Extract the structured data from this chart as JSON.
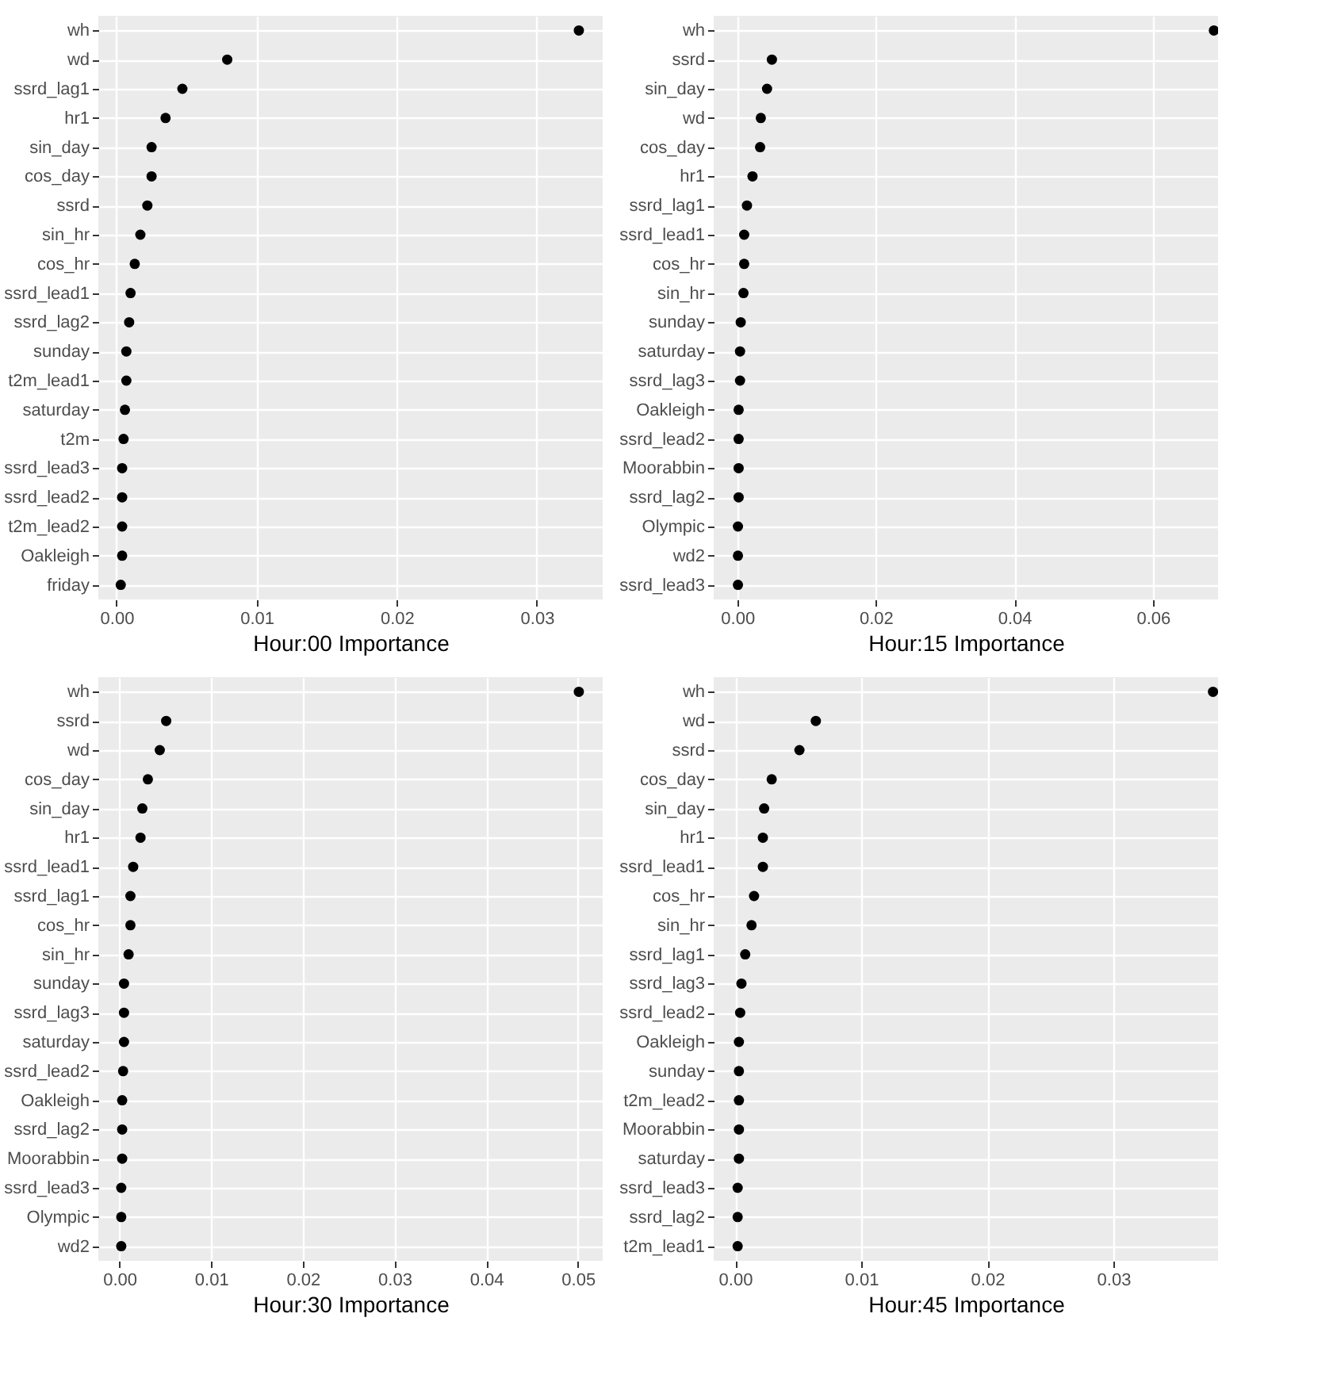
{
  "chart_data": [
    {
      "type": "scatter",
      "orientation": "horizontal",
      "xlabel": "Hour:00 Importance",
      "marker": "circle",
      "grid": true,
      "xlim": [
        -0.0013,
        0.0347
      ],
      "xticks": [
        {
          "value": 0,
          "label": "0.00"
        },
        {
          "value": 0.01,
          "label": "0.01"
        },
        {
          "value": 0.02,
          "label": "0.02"
        },
        {
          "value": 0.03,
          "label": "0.03"
        }
      ],
      "categories": [
        "wh",
        "wd",
        "ssrd_lag1",
        "hr1",
        "sin_day",
        "cos_day",
        "ssrd",
        "sin_hr",
        "cos_hr",
        "ssrd_lead1",
        "ssrd_lag2",
        "sunday",
        "t2m_lead1",
        "saturday",
        "t2m",
        "ssrd_lead3",
        "ssrd_lead2",
        "t2m_lead2",
        "Oakleigh",
        "friday"
      ],
      "series": [
        {
          "color": "#000000",
          "values": [
            0.033,
            0.0079,
            0.0047,
            0.0035,
            0.0025,
            0.0025,
            0.0022,
            0.0017,
            0.0013,
            0.001,
            0.0009,
            0.0007,
            0.0007,
            0.0006,
            0.0005,
            0.0004,
            0.0004,
            0.0004,
            0.0004,
            0.0003
          ]
        }
      ]
    },
    {
      "type": "scatter",
      "orientation": "horizontal",
      "xlabel": "Hour:15 Importance",
      "marker": "circle",
      "grid": true,
      "xlim": [
        -0.0034,
        0.0694
      ],
      "xticks": [
        {
          "value": 0,
          "label": "0.00"
        },
        {
          "value": 0.02,
          "label": "0.02"
        },
        {
          "value": 0.04,
          "label": "0.04"
        },
        {
          "value": 0.06,
          "label": "0.06"
        }
      ],
      "categories": [
        "wh",
        "ssrd",
        "sin_day",
        "wd",
        "cos_day",
        "hr1",
        "ssrd_lag1",
        "ssrd_lead1",
        "cos_hr",
        "sin_hr",
        "sunday",
        "saturday",
        "ssrd_lag3",
        "Oakleigh",
        "ssrd_lead2",
        "Moorabbin",
        "ssrd_lag2",
        "Olympic",
        "wd2",
        "ssrd_lead3"
      ],
      "series": [
        {
          "color": "#000000",
          "values": [
            0.0688,
            0.005,
            0.0043,
            0.0034,
            0.0033,
            0.0022,
            0.0014,
            0.001,
            0.001,
            0.0009,
            0.0005,
            0.0004,
            0.0004,
            0.0002,
            0.0002,
            0.0002,
            0.0002,
            0.0001,
            0.0001,
            0.0001
          ]
        }
      ]
    },
    {
      "type": "scatter",
      "orientation": "horizontal",
      "xlabel": "Hour:30 Importance",
      "marker": "circle",
      "grid": true,
      "xlim": [
        -0.0023,
        0.0527
      ],
      "xticks": [
        {
          "value": 0,
          "label": "0.00"
        },
        {
          "value": 0.01,
          "label": "0.01"
        },
        {
          "value": 0.02,
          "label": "0.02"
        },
        {
          "value": 0.03,
          "label": "0.03"
        },
        {
          "value": 0.04,
          "label": "0.04"
        },
        {
          "value": 0.05,
          "label": "0.05"
        }
      ],
      "categories": [
        "wh",
        "ssrd",
        "wd",
        "cos_day",
        "sin_day",
        "hr1",
        "ssrd_lead1",
        "ssrd_lag1",
        "cos_hr",
        "sin_hr",
        "sunday",
        "ssrd_lag3",
        "saturday",
        "ssrd_lead2",
        "Oakleigh",
        "ssrd_lag2",
        "Moorabbin",
        "ssrd_lead3",
        "Olympic",
        "wd2"
      ],
      "series": [
        {
          "color": "#000000",
          "values": [
            0.0501,
            0.0051,
            0.0044,
            0.0031,
            0.0025,
            0.0023,
            0.0015,
            0.0012,
            0.0012,
            0.001,
            0.0005,
            0.0005,
            0.0005,
            0.0004,
            0.0003,
            0.0003,
            0.0003,
            0.0002,
            0.0002,
            0.0002
          ]
        }
      ]
    },
    {
      "type": "scatter",
      "orientation": "horizontal",
      "xlabel": "Hour:45 Importance",
      "marker": "circle",
      "grid": true,
      "xlim": [
        -0.0017,
        0.0383
      ],
      "xticks": [
        {
          "value": 0,
          "label": "0.00"
        },
        {
          "value": 0.01,
          "label": "0.01"
        },
        {
          "value": 0.02,
          "label": "0.02"
        },
        {
          "value": 0.03,
          "label": "0.03"
        }
      ],
      "categories": [
        "wh",
        "wd",
        "ssrd",
        "cos_day",
        "sin_day",
        "hr1",
        "ssrd_lead1",
        "cos_hr",
        "sin_hr",
        "ssrd_lag1",
        "ssrd_lag3",
        "ssrd_lead2",
        "Oakleigh",
        "sunday",
        "t2m_lead2",
        "Moorabbin",
        "saturday",
        "ssrd_lead3",
        "ssrd_lag2",
        "t2m_lead1"
      ],
      "series": [
        {
          "color": "#000000",
          "values": [
            0.0379,
            0.0064,
            0.0051,
            0.0029,
            0.0023,
            0.0022,
            0.0022,
            0.0015,
            0.0013,
            0.0008,
            0.0005,
            0.0004,
            0.0003,
            0.0003,
            0.0003,
            0.0003,
            0.0003,
            0.0002,
            0.0002,
            0.0002
          ]
        }
      ]
    }
  ]
}
